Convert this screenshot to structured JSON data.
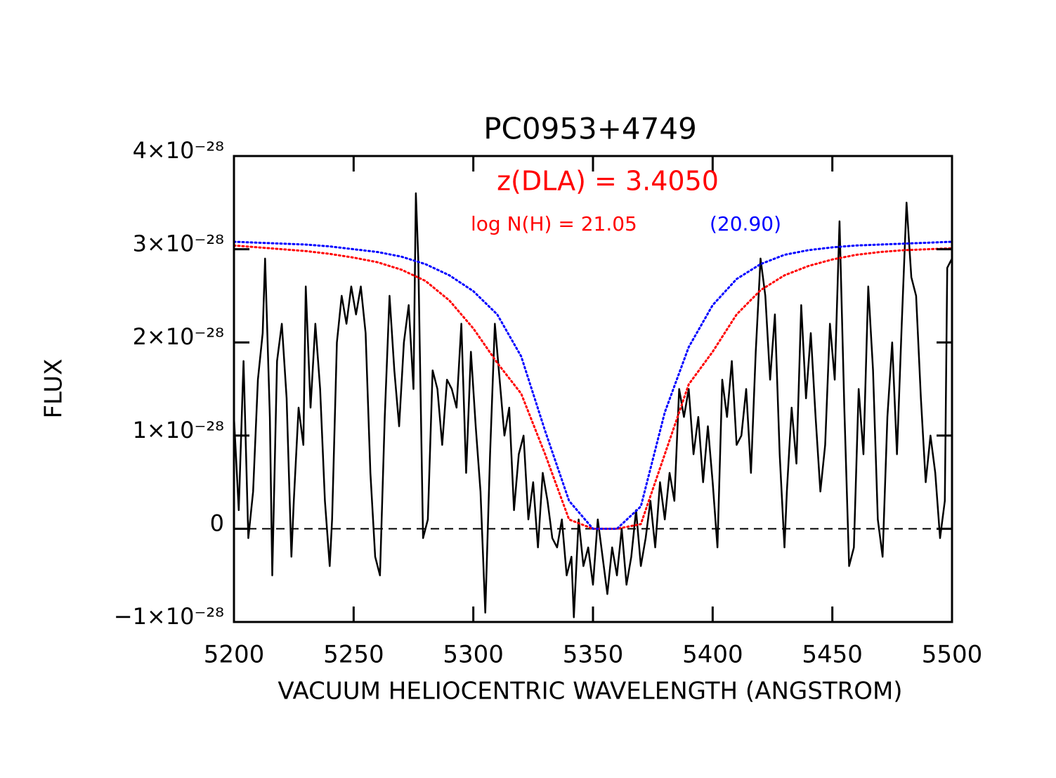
{
  "chart_data": {
    "type": "line",
    "title": "PC0953+4749",
    "x_label": "VACUUM HELIOCENTRIC WAVELENGTH (ANGSTROM)",
    "y_label": "FLUX",
    "annotations": [
      {
        "text": "z(DLA) = 3.4050",
        "color": "#ff0000"
      },
      {
        "text": "log N(H) = 21.05",
        "color": "#ff0000"
      },
      {
        "text": "(20.90)",
        "color": "#0000ff"
      }
    ],
    "xlim": [
      5200,
      5500
    ],
    "xticks": [
      5200,
      5250,
      5300,
      5350,
      5400,
      5450,
      5500
    ],
    "ylim": [
      -1e-28,
      4e-28
    ],
    "yticks": [
      {
        "value": -1e-28,
        "label": "−1×10⁻²⁸"
      },
      0,
      {
        "value": 1e-28,
        "label": "1×10⁻²⁸"
      },
      {
        "value": 2e-28,
        "label": "2×10⁻²⁸"
      },
      {
        "value": 3e-28,
        "label": "3×10⁻²⁸"
      },
      {
        "value": 4e-28,
        "label": "4×10⁻²⁸"
      }
    ],
    "series": [
      {
        "color": "#000000",
        "style": "solid",
        "x": [
          5200,
          5202,
          5204,
          5206,
          5208,
          5210,
          5212,
          5213,
          5215,
          5216,
          5218,
          5220,
          5222,
          5224,
          5225,
          5227,
          5229,
          5230,
          5232,
          5234,
          5236,
          5238,
          5240,
          5241,
          5243,
          5245,
          5247,
          5249,
          5251,
          5253,
          5255,
          5257,
          5259,
          5261,
          5263,
          5265,
          5267,
          5269,
          5271,
          5273,
          5275,
          5276,
          5277,
          5279,
          5281,
          5283,
          5285,
          5287,
          5289,
          5291,
          5293,
          5295,
          5297,
          5299,
          5301,
          5303,
          5305,
          5307,
          5309,
          5311,
          5313,
          5315,
          5317,
          5319,
          5321,
          5323,
          5325,
          5327,
          5329,
          5331,
          5333,
          5335,
          5337,
          5339,
          5341,
          5342,
          5344,
          5346,
          5348,
          5350,
          5352,
          5354,
          5356,
          5358,
          5360,
          5362,
          5364,
          5366,
          5368,
          5370,
          5372,
          5374,
          5376,
          5378,
          5380,
          5382,
          5384,
          5386,
          5388,
          5390,
          5392,
          5394,
          5396,
          5398,
          5400,
          5402,
          5404,
          5406,
          5408,
          5410,
          5412,
          5414,
          5416,
          5418,
          5420,
          5422,
          5424,
          5426,
          5428,
          5430,
          5431,
          5433,
          5435,
          5437,
          5439,
          5441,
          5443,
          5445,
          5447,
          5449,
          5451,
          5453,
          5455,
          5457,
          5459,
          5461,
          5463,
          5465,
          5467,
          5469,
          5471,
          5473,
          5475,
          5477,
          5479,
          5481,
          5483,
          5485,
          5487,
          5489,
          5491,
          5493,
          5495,
          5497,
          5498,
          5500
        ],
        "values": [
          1.2e-28,
          2e-29,
          1.8e-28,
          -1e-29,
          4e-29,
          1.6e-28,
          2.1e-28,
          2.9e-28,
          1.2e-28,
          -5e-29,
          1.8e-28,
          2.2e-28,
          1.4e-28,
          -3e-29,
          3e-29,
          1.3e-28,
          9e-29,
          2.6e-28,
          1.3e-28,
          2.2e-28,
          1.5e-28,
          3e-29,
          -4e-29,
          1e-29,
          2e-28,
          2.5e-28,
          2.2e-28,
          2.6e-28,
          2.3e-28,
          2.6e-28,
          2.1e-28,
          6e-29,
          -3e-29,
          -5e-29,
          1.2e-28,
          2.5e-28,
          1.7e-28,
          1.1e-28,
          2e-28,
          2.4e-28,
          1.5e-28,
          3.6e-28,
          2.9e-28,
          -1e-29,
          1e-29,
          1.7e-28,
          1.5e-28,
          9e-29,
          1.6e-28,
          1.5e-28,
          1.3e-28,
          2.2e-28,
          6e-29,
          1.9e-28,
          1.1e-28,
          4e-29,
          -9e-29,
          8e-29,
          2.2e-28,
          1.6e-28,
          1e-28,
          1.3e-28,
          2e-29,
          8e-29,
          1e-28,
          1e-29,
          5e-29,
          -2e-29,
          6e-29,
          3e-29,
          -1e-29,
          -2e-29,
          1e-29,
          -5e-29,
          -3e-29,
          -9.5e-29,
          1e-29,
          -4e-29,
          -2e-29,
          -6e-29,
          1e-29,
          -3e-29,
          -7e-29,
          -2e-29,
          -5e-29,
          0.0,
          -6e-29,
          -3e-29,
          2e-29,
          -4e-29,
          -1e-29,
          3e-29,
          -2e-29,
          5e-29,
          1e-29,
          6e-29,
          3e-29,
          1.5e-28,
          1.2e-28,
          1.5e-28,
          8e-29,
          1.2e-28,
          5e-29,
          1.1e-28,
          5e-29,
          -2e-29,
          1.6e-28,
          1.2e-28,
          1.8e-28,
          9e-29,
          1e-28,
          1.5e-28,
          6e-29,
          1.9e-28,
          2.9e-28,
          2.5e-28,
          1.6e-28,
          2.3e-28,
          8e-29,
          -2e-29,
          4e-29,
          1.3e-28,
          7e-29,
          2.4e-28,
          1.4e-28,
          2.1e-28,
          1.2e-28,
          4e-29,
          9e-29,
          2.2e-28,
          1.6e-28,
          3.3e-28,
          1.3e-28,
          -4e-29,
          -2e-29,
          1.5e-28,
          8e-29,
          2.6e-28,
          1.7e-28,
          1e-29,
          -3e-29,
          1.2e-28,
          2e-28,
          8e-29,
          2.2e-28,
          3.5e-28,
          2.7e-28,
          2.5e-28,
          1.4e-28,
          5e-29,
          1e-28,
          6e-29,
          -1e-29,
          3e-29,
          2.8e-28,
          2.9e-28
        ]
      },
      {
        "color": "#ff0000",
        "style": "dotted",
        "x": [
          5200,
          5210,
          5220,
          5230,
          5240,
          5250,
          5260,
          5270,
          5280,
          5290,
          5300,
          5310,
          5320,
          5330,
          5340,
          5350,
          5360,
          5370,
          5380,
          5390,
          5400,
          5410,
          5420,
          5430,
          5440,
          5450,
          5460,
          5470,
          5480,
          5490,
          5500
        ],
        "values": [
          3.04e-28,
          3.02e-28,
          3e-28,
          2.98e-28,
          2.95e-28,
          2.91e-28,
          2.86e-28,
          2.78e-28,
          2.66e-28,
          2.45e-28,
          2.15e-28,
          1.78e-28,
          1.45e-28,
          8e-29,
          1e-29,
          0,
          0,
          5e-30,
          8e-29,
          1.55e-28,
          1.9e-28,
          2.3e-28,
          2.56e-28,
          2.72e-28,
          2.82e-28,
          2.89e-28,
          2.94e-28,
          2.97e-28,
          2.99e-28,
          3e-28,
          3.01e-28
        ]
      },
      {
        "color": "#0000ff",
        "style": "dotted",
        "x": [
          5200,
          5210,
          5220,
          5230,
          5240,
          5250,
          5260,
          5270,
          5280,
          5290,
          5300,
          5310,
          5320,
          5330,
          5340,
          5350,
          5360,
          5370,
          5380,
          5390,
          5400,
          5410,
          5420,
          5430,
          5440,
          5450,
          5460,
          5470,
          5480,
          5490,
          5500
        ],
        "values": [
          3.08e-28,
          3.07e-28,
          3.06e-28,
          3.05e-28,
          3.03e-28,
          3e-28,
          2.97e-28,
          2.92e-28,
          2.84e-28,
          2.72e-28,
          2.55e-28,
          2.3e-28,
          1.85e-28,
          1.05e-28,
          3e-29,
          0,
          0,
          2.4e-29,
          1.25e-28,
          1.95e-28,
          2.4e-28,
          2.68e-28,
          2.84e-28,
          2.94e-28,
          2.99e-28,
          3.02e-28,
          3.04e-28,
          3.05e-28,
          3.06e-28,
          3.07e-28,
          3.08e-28
        ]
      }
    ]
  }
}
